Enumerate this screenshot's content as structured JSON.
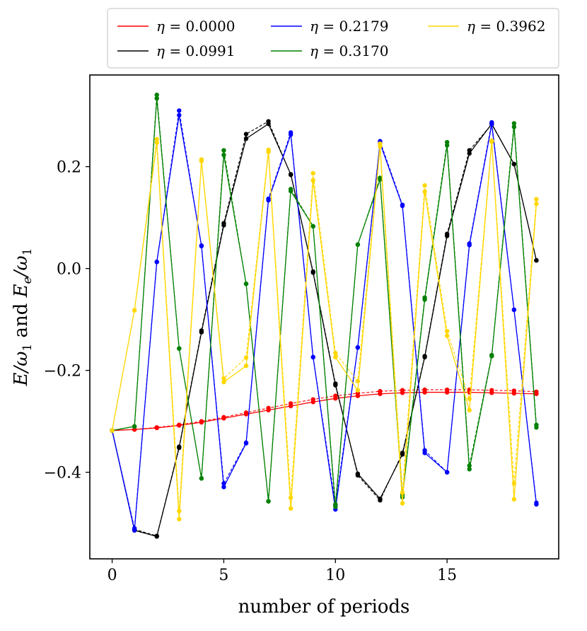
{
  "chart_data": {
    "type": "line",
    "title": "",
    "xlabel": "number of periods",
    "ylabel": "E/ω₁ and Eₑ/ω₁",
    "ylabel_parts": {
      "e1": "E",
      "s1": "/ω",
      "sub1": "1",
      "mid": " and ",
      "e2": "E",
      "sub2": "e",
      "s2": "/ω",
      "sub3": "1"
    },
    "xlim": [
      -1,
      20
    ],
    "ylim": [
      -0.57,
      0.38
    ],
    "xticks": [
      0,
      5,
      10,
      15
    ],
    "xtick_labels": [
      "0",
      "5",
      "10",
      "15"
    ],
    "yticks": [
      -0.4,
      -0.2,
      0.0,
      0.2
    ],
    "ytick_labels": [
      "−0.4",
      "−0.2",
      "0.0",
      "0.2"
    ],
    "grid": false,
    "legend": {
      "placement": "above-top",
      "columns": 3
    },
    "x": [
      0,
      1,
      2,
      3,
      4,
      5,
      6,
      7,
      8,
      9,
      10,
      11,
      12,
      13,
      14,
      15,
      16,
      17,
      18,
      19
    ],
    "series": [
      {
        "name": "η = 0.0000",
        "label_text": "= 0.0000",
        "color": "#ff0000",
        "values": [
          -0.318,
          -0.316,
          -0.313,
          -0.308,
          -0.302,
          -0.294,
          -0.286,
          -0.278,
          -0.27,
          -0.262,
          -0.255,
          -0.25,
          -0.246,
          -0.244,
          -0.243,
          -0.243,
          -0.243,
          -0.244,
          -0.245,
          -0.246
        ],
        "values_e": [
          -0.318,
          -0.316,
          -0.312,
          -0.307,
          -0.3,
          -0.292,
          -0.283,
          -0.274,
          -0.265,
          -0.257,
          -0.25,
          -0.245,
          -0.241,
          -0.239,
          -0.238,
          -0.238,
          -0.238,
          -0.239,
          -0.24,
          -0.242
        ]
      },
      {
        "name": "η = 0.0991",
        "label_text": "= 0.0991",
        "color": "#000000",
        "values": [
          -0.318,
          -0.514,
          -0.526,
          -0.352,
          -0.125,
          0.085,
          0.255,
          0.284,
          0.185,
          -0.008,
          -0.229,
          -0.403,
          -0.452,
          -0.365,
          -0.174,
          0.064,
          0.226,
          0.284,
          0.205,
          0.016
        ],
        "values_e": [
          -0.318,
          -0.512,
          -0.525,
          -0.35,
          -0.122,
          0.089,
          0.264,
          0.289,
          0.184,
          -0.006,
          -0.226,
          -0.406,
          -0.455,
          -0.362,
          -0.172,
          0.068,
          0.232,
          0.283,
          0.205,
          0.016
        ]
      },
      {
        "name": "η = 0.2179",
        "label_text": "= 0.2179",
        "color": "#0000ff",
        "values": [
          -0.318,
          -0.514,
          0.013,
          0.301,
          0.045,
          -0.429,
          -0.343,
          0.134,
          0.263,
          -0.174,
          -0.473,
          -0.155,
          0.246,
          0.123,
          -0.362,
          -0.4,
          0.046,
          0.283,
          -0.081,
          -0.463
        ],
        "values_e": [
          -0.318,
          -0.51,
          0.013,
          0.31,
          0.044,
          -0.422,
          -0.342,
          0.137,
          0.267,
          -0.174,
          -0.464,
          -0.155,
          0.25,
          0.125,
          -0.357,
          -0.4,
          0.049,
          0.287,
          -0.081,
          -0.46
        ]
      },
      {
        "name": "η = 0.3170",
        "label_text": "= 0.3170",
        "color": "#008000",
        "values": [
          -0.318,
          -0.31,
          0.334,
          -0.157,
          -0.412,
          0.223,
          -0.03,
          -0.457,
          0.152,
          0.083,
          -0.468,
          0.047,
          0.175,
          -0.449,
          -0.061,
          0.242,
          -0.394,
          -0.172,
          0.278,
          -0.312
        ],
        "values_e": [
          -0.318,
          -0.31,
          0.341,
          -0.157,
          -0.412,
          0.232,
          -0.03,
          -0.457,
          0.156,
          0.083,
          -0.463,
          0.047,
          0.178,
          -0.444,
          -0.057,
          0.248,
          -0.387,
          -0.17,
          0.285,
          -0.307
        ]
      },
      {
        "name": "η = 0.3962",
        "label_text": "= 0.3962",
        "color": "#ffd700",
        "values": [
          -0.318,
          -0.082,
          0.247,
          -0.492,
          0.211,
          -0.223,
          -0.191,
          0.229,
          -0.471,
          0.173,
          -0.174,
          -0.239,
          0.24,
          -0.461,
          0.151,
          -0.132,
          -0.278,
          0.249,
          -0.453,
          0.127
        ],
        "values_e": [
          -0.318,
          -0.082,
          0.254,
          -0.476,
          0.214,
          -0.216,
          -0.175,
          0.233,
          -0.45,
          0.187,
          -0.166,
          -0.221,
          0.245,
          -0.44,
          0.163,
          -0.123,
          -0.256,
          0.251,
          -0.422,
          0.136
        ]
      }
    ]
  }
}
